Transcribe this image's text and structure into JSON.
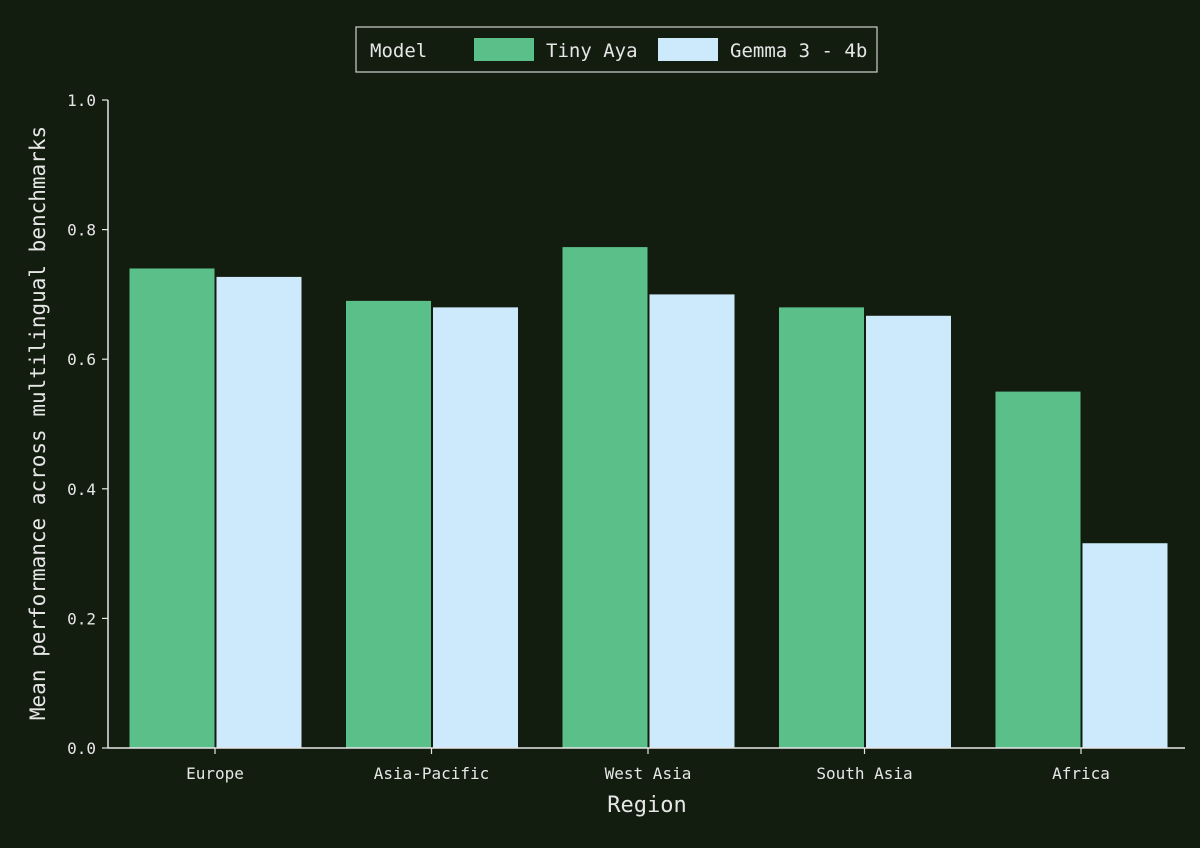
{
  "chart_data": {
    "type": "bar",
    "title": "",
    "xlabel": "Region",
    "ylabel": "Mean performance across multilingual benchmarks",
    "categories": [
      "Europe",
      "Asia-Pacific",
      "West Asia",
      "South Asia",
      "Africa"
    ],
    "series": [
      {
        "name": "Tiny Aya",
        "color": "#5bbf8a",
        "values": [
          0.74,
          0.69,
          0.773,
          0.68,
          0.55
        ]
      },
      {
        "name": "Gemma 3 - 4b",
        "color": "#cde9fc",
        "values": [
          0.727,
          0.68,
          0.7,
          0.667,
          0.316
        ]
      }
    ],
    "ylim": [
      0,
      1.0
    ],
    "yticks": [
      "0.0",
      "0.2",
      "0.4",
      "0.6",
      "0.8",
      "1.0"
    ],
    "legend": {
      "title": "Model",
      "placement": "top-center"
    },
    "grid": false
  },
  "colors": {
    "background": "#131d0f",
    "axis": "#e6e6e6",
    "text": "#e6e6e6"
  }
}
